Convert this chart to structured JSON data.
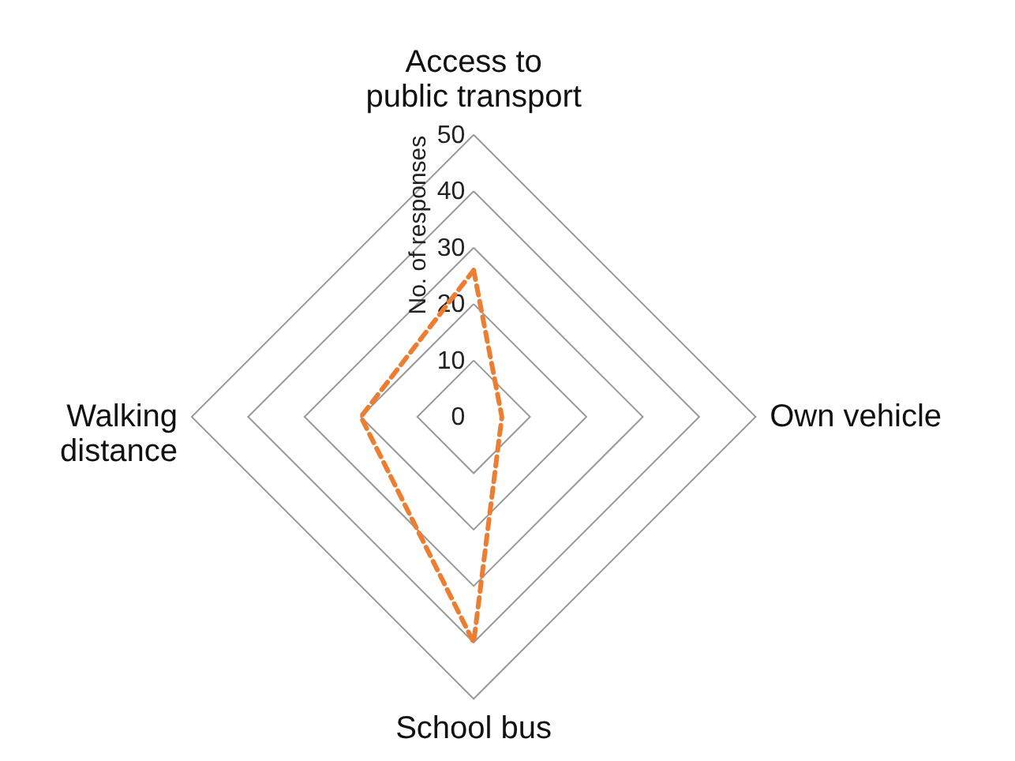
{
  "chart_data": {
    "type": "radar",
    "categories": [
      "Access to\npublic transport",
      "Own vehicle",
      "School bus",
      "Walking\ndistance"
    ],
    "series": [
      {
        "color": "#ed7d31",
        "values": [
          26,
          5,
          40,
          20
        ]
      }
    ],
    "ylabel": "No. of responses",
    "ylim": [
      0,
      50
    ],
    "yticks": [
      0,
      10,
      20,
      30,
      40,
      50
    ],
    "grid": true,
    "line_style": "dashed",
    "marker": "none"
  }
}
